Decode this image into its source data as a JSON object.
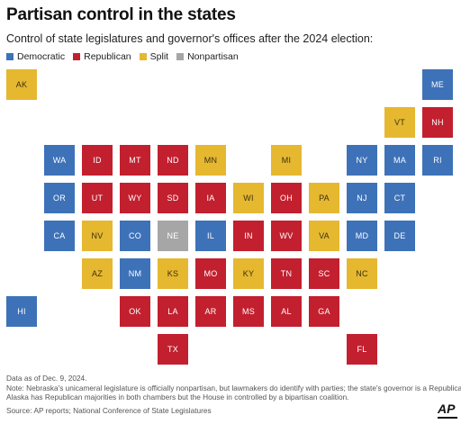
{
  "title": "Partisan control in the states",
  "subtitle": "Control of state legislatures and governor's offices after the 2024 election:",
  "legend": [
    {
      "label": "Democratic",
      "color": "#3d72b8"
    },
    {
      "label": "Republican",
      "color": "#c2202f"
    },
    {
      "label": "Split",
      "color": "#e6b830"
    },
    {
      "label": "Nonpartisan",
      "color": "#a6a6a6"
    }
  ],
  "chart_data": {
    "type": "table",
    "categories": [
      "Democratic",
      "Republican",
      "Split",
      "Nonpartisan"
    ],
    "tiles": [
      {
        "state": "AK",
        "control": "Split",
        "row": 0,
        "col": 0
      },
      {
        "state": "ME",
        "control": "Democratic",
        "row": 0,
        "col": 11
      },
      {
        "state": "VT",
        "control": "Split",
        "row": 1,
        "col": 10
      },
      {
        "state": "NH",
        "control": "Republican",
        "row": 1,
        "col": 11
      },
      {
        "state": "WA",
        "control": "Democratic",
        "row": 2,
        "col": 1
      },
      {
        "state": "ID",
        "control": "Republican",
        "row": 2,
        "col": 2
      },
      {
        "state": "MT",
        "control": "Republican",
        "row": 2,
        "col": 3
      },
      {
        "state": "ND",
        "control": "Republican",
        "row": 2,
        "col": 4
      },
      {
        "state": "MN",
        "control": "Split",
        "row": 2,
        "col": 5
      },
      {
        "state": "MI",
        "control": "Split",
        "row": 2,
        "col": 7
      },
      {
        "state": "NY",
        "control": "Democratic",
        "row": 2,
        "col": 9
      },
      {
        "state": "MA",
        "control": "Democratic",
        "row": 2,
        "col": 10
      },
      {
        "state": "RI",
        "control": "Democratic",
        "row": 2,
        "col": 11
      },
      {
        "state": "OR",
        "control": "Democratic",
        "row": 3,
        "col": 1
      },
      {
        "state": "UT",
        "control": "Republican",
        "row": 3,
        "col": 2
      },
      {
        "state": "WY",
        "control": "Republican",
        "row": 3,
        "col": 3
      },
      {
        "state": "SD",
        "control": "Republican",
        "row": 3,
        "col": 4
      },
      {
        "state": "IA",
        "control": "Republican",
        "row": 3,
        "col": 5
      },
      {
        "state": "WI",
        "control": "Split",
        "row": 3,
        "col": 6
      },
      {
        "state": "OH",
        "control": "Republican",
        "row": 3,
        "col": 7
      },
      {
        "state": "PA",
        "control": "Split",
        "row": 3,
        "col": 8
      },
      {
        "state": "NJ",
        "control": "Democratic",
        "row": 3,
        "col": 9
      },
      {
        "state": "CT",
        "control": "Democratic",
        "row": 3,
        "col": 10
      },
      {
        "state": "CA",
        "control": "Democratic",
        "row": 4,
        "col": 1
      },
      {
        "state": "NV",
        "control": "Split",
        "row": 4,
        "col": 2
      },
      {
        "state": "CO",
        "control": "Democratic",
        "row": 4,
        "col": 3
      },
      {
        "state": "NE",
        "control": "Nonpartisan",
        "row": 4,
        "col": 4
      },
      {
        "state": "IL",
        "control": "Democratic",
        "row": 4,
        "col": 5
      },
      {
        "state": "IN",
        "control": "Republican",
        "row": 4,
        "col": 6
      },
      {
        "state": "WV",
        "control": "Republican",
        "row": 4,
        "col": 7
      },
      {
        "state": "VA",
        "control": "Split",
        "row": 4,
        "col": 8
      },
      {
        "state": "MD",
        "control": "Democratic",
        "row": 4,
        "col": 9
      },
      {
        "state": "DE",
        "control": "Democratic",
        "row": 4,
        "col": 10
      },
      {
        "state": "AZ",
        "control": "Split",
        "row": 5,
        "col": 2
      },
      {
        "state": "NM",
        "control": "Democratic",
        "row": 5,
        "col": 3
      },
      {
        "state": "KS",
        "control": "Split",
        "row": 5,
        "col": 4
      },
      {
        "state": "MO",
        "control": "Republican",
        "row": 5,
        "col": 5
      },
      {
        "state": "KY",
        "control": "Split",
        "row": 5,
        "col": 6
      },
      {
        "state": "TN",
        "control": "Republican",
        "row": 5,
        "col": 7
      },
      {
        "state": "SC",
        "control": "Republican",
        "row": 5,
        "col": 8
      },
      {
        "state": "NC",
        "control": "Split",
        "row": 5,
        "col": 9
      },
      {
        "state": "HI",
        "control": "Democratic",
        "row": 6,
        "col": 0
      },
      {
        "state": "OK",
        "control": "Republican",
        "row": 6,
        "col": 3
      },
      {
        "state": "LA",
        "control": "Republican",
        "row": 6,
        "col": 4
      },
      {
        "state": "AR",
        "control": "Republican",
        "row": 6,
        "col": 5
      },
      {
        "state": "MS",
        "control": "Republican",
        "row": 6,
        "col": 6
      },
      {
        "state": "AL",
        "control": "Republican",
        "row": 6,
        "col": 7
      },
      {
        "state": "GA",
        "control": "Republican",
        "row": 6,
        "col": 8
      },
      {
        "state": "TX",
        "control": "Republican",
        "row": 7,
        "col": 4
      },
      {
        "state": "FL",
        "control": "Republican",
        "row": 7,
        "col": 9
      }
    ]
  },
  "footer": {
    "date_note": "Data as of Dec. 9, 2024.",
    "note_line1": "Note: Nebraska's unicameral legislature is officially nonpartisan, but lawmakers do identify with parties; the state's governor is a Republican.",
    "note_line2": "Alaska has Republican majorities in both chambers but the House in controlled by a bipartisan coalition.",
    "source": "Source: AP reports; National Conference of State Legislatures"
  },
  "logo": "AP"
}
